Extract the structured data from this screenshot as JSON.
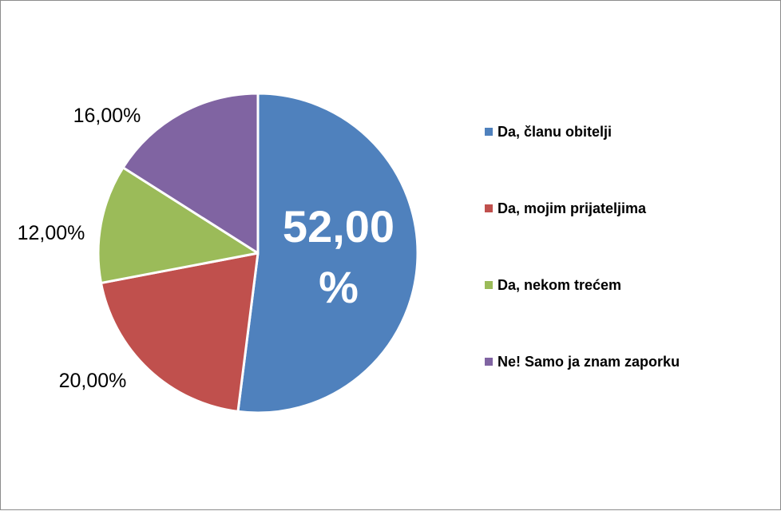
{
  "chart_data": {
    "type": "pie",
    "categories": [
      "Da, članu obitelji",
      "Da, mojim prijateljima",
      "Da, nekom trećem",
      "Ne! Samo ja znam zaporku"
    ],
    "values": [
      52,
      20,
      12,
      16
    ],
    "data_labels": [
      "52,00 %",
      "20,00%",
      "12,00%",
      "16,00%"
    ],
    "colors": [
      "#4F81BD",
      "#C0504D",
      "#9BBB59",
      "#8064A2"
    ],
    "start_angle": "12 o'clock",
    "direction": "clockwise",
    "legend": "right"
  }
}
